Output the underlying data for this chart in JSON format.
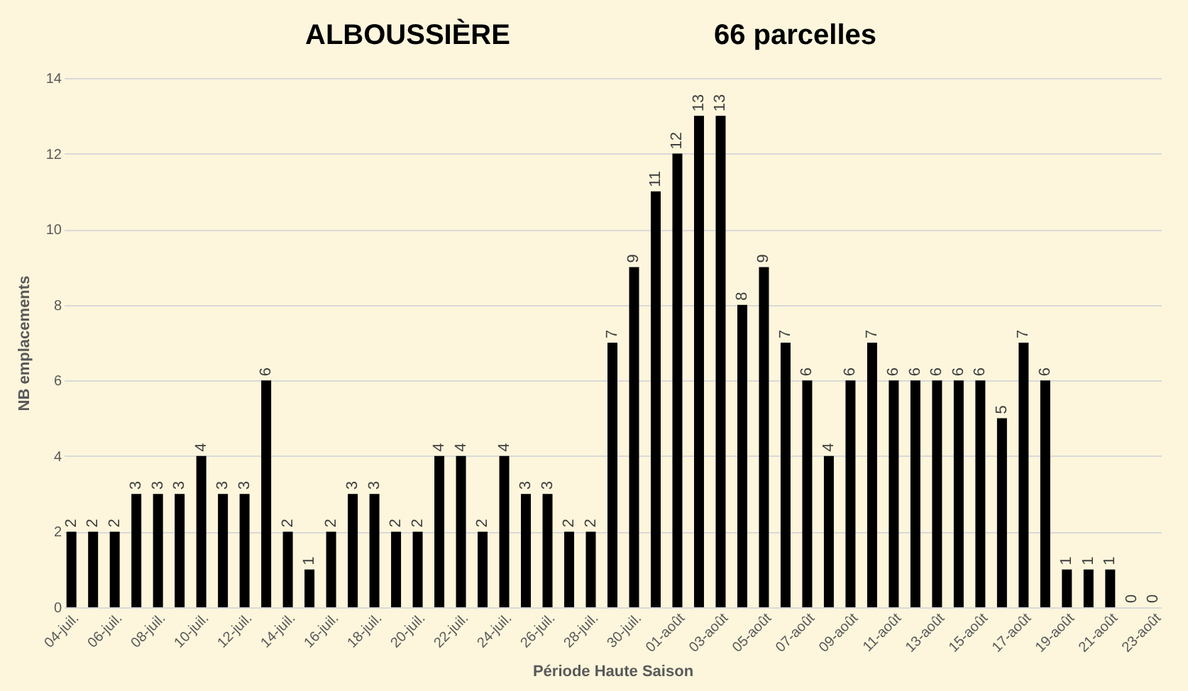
{
  "chart_data": {
    "type": "bar",
    "title": "ALBOUSSIÈRE",
    "subtitle": "66 parcelles",
    "xlabel": "Période Haute Saison",
    "ylabel": "NB emplacements",
    "categories": [
      "04-juil.",
      null,
      "06-juil.",
      null,
      "08-juil.",
      null,
      "10-juil.",
      null,
      "12-juil.",
      null,
      "14-juil.",
      null,
      "16-juil.",
      null,
      "18-juil.",
      null,
      "20-juil.",
      null,
      "22-juil.",
      null,
      "24-juil.",
      null,
      "26-juil.",
      null,
      "28-juil.",
      null,
      "30-juil.",
      null,
      "01-août",
      null,
      "03-août",
      null,
      "05-août",
      null,
      "07-août",
      null,
      "09-août",
      null,
      "11-août",
      null,
      "13-août",
      null,
      "15-août",
      null,
      "17-août",
      null,
      "19-août",
      null,
      "21-août",
      null,
      "23-août"
    ],
    "values": [
      2,
      2,
      2,
      3,
      3,
      3,
      4,
      3,
      3,
      6,
      2,
      1,
      2,
      3,
      3,
      2,
      2,
      4,
      4,
      2,
      4,
      3,
      3,
      2,
      2,
      7,
      9,
      11,
      12,
      13,
      13,
      8,
      9,
      7,
      6,
      4,
      6,
      7,
      6,
      6,
      6,
      6,
      6,
      5,
      7,
      6,
      1,
      1,
      1,
      0,
      0
    ],
    "color": "#000000",
    "ylim": [
      0,
      14
    ],
    "yticks": [
      0,
      2,
      4,
      6,
      8,
      10,
      12,
      14
    ],
    "grid": "y",
    "data_labels": true
  }
}
